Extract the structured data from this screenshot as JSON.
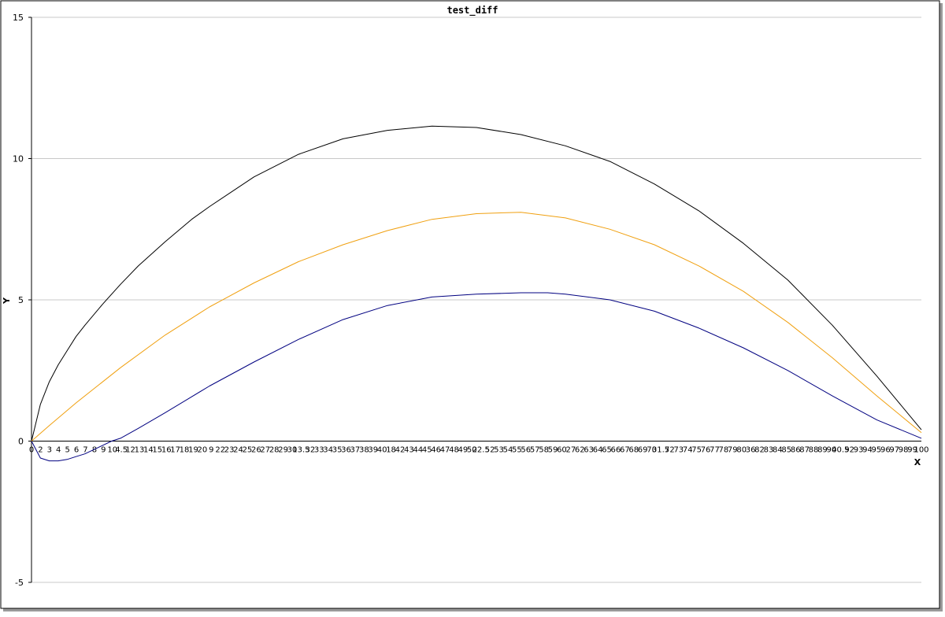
{
  "chart_data": {
    "type": "line",
    "title": "test_diff",
    "xlabel": "X",
    "ylabel": "Y",
    "xlim": [
      0,
      100
    ],
    "ylim": [
      -5,
      15
    ],
    "grid": "horizontal",
    "ytick_labels": [
      "-5",
      "0",
      "5",
      "10",
      "15"
    ],
    "xtick_labels": [
      "0",
      "2",
      "3",
      "4",
      "5",
      "6",
      "7",
      "8",
      "9",
      "10",
      "4.5",
      "12",
      "13",
      "14",
      "15",
      "16",
      "17",
      "18",
      "19",
      "20",
      "9",
      "22",
      "23",
      "24",
      "25",
      "26",
      "27",
      "28",
      "29",
      "30",
      "13.5",
      "32",
      "33",
      "34",
      "35",
      "36",
      "37",
      "38",
      "39",
      "40",
      "18",
      "42",
      "43",
      "44",
      "45",
      "46",
      "47",
      "48",
      "49",
      "50",
      "22.5",
      "52",
      "53",
      "54",
      "55",
      "56",
      "57",
      "58",
      "59",
      "60",
      "27",
      "62",
      "63",
      "64",
      "65",
      "66",
      "67",
      "68",
      "69",
      "70",
      "31.5",
      "72",
      "73",
      "74",
      "75",
      "76",
      "77",
      "78",
      "79",
      "80",
      "36",
      "82",
      "83",
      "84",
      "85",
      "86",
      "87",
      "88",
      "89",
      "90",
      "40.5",
      "92",
      "93",
      "94",
      "95",
      "96",
      "97",
      "98",
      "99",
      "100"
    ],
    "series": [
      {
        "color": "#000000",
        "x": [
          0,
          1,
          2,
          3,
          4,
          5,
          6,
          8,
          10,
          12,
          15,
          18,
          20,
          25,
          30,
          35,
          40,
          45,
          50,
          55,
          60,
          65,
          70,
          75,
          80,
          85,
          90,
          95,
          100
        ],
        "values": [
          0.0,
          1.3,
          2.1,
          2.7,
          3.2,
          3.7,
          4.1,
          4.85,
          5.55,
          6.2,
          7.05,
          7.85,
          8.3,
          9.35,
          10.15,
          10.7,
          11.0,
          11.15,
          11.1,
          10.85,
          10.45,
          9.9,
          9.1,
          8.15,
          7.0,
          5.7,
          4.1,
          2.3,
          0.4
        ]
      },
      {
        "color": "#f0a010",
        "x": [
          0,
          2,
          5,
          10,
          15,
          20,
          25,
          30,
          35,
          40,
          45,
          50,
          55,
          60,
          65,
          70,
          75,
          80,
          85,
          90,
          95,
          100
        ],
        "values": [
          0.0,
          0.55,
          1.35,
          2.6,
          3.75,
          4.75,
          5.6,
          6.35,
          6.95,
          7.45,
          7.85,
          8.05,
          8.1,
          7.9,
          7.5,
          6.95,
          6.2,
          5.3,
          4.2,
          2.95,
          1.6,
          0.3
        ]
      },
      {
        "color": "#000080",
        "x": [
          0,
          1,
          2,
          3,
          4,
          5,
          6,
          7,
          8,
          9,
          10,
          12,
          15,
          20,
          25,
          30,
          35,
          40,
          45,
          50,
          55,
          58,
          60,
          65,
          70,
          75,
          80,
          85,
          90,
          95,
          100
        ],
        "values": [
          0.0,
          -0.6,
          -0.7,
          -0.7,
          -0.65,
          -0.55,
          -0.45,
          -0.3,
          -0.15,
          0.0,
          0.1,
          0.45,
          1.0,
          1.95,
          2.8,
          3.6,
          4.3,
          4.8,
          5.1,
          5.2,
          5.25,
          5.25,
          5.2,
          5.0,
          4.6,
          4.0,
          3.3,
          2.5,
          1.6,
          0.75,
          0.1
        ]
      }
    ]
  }
}
